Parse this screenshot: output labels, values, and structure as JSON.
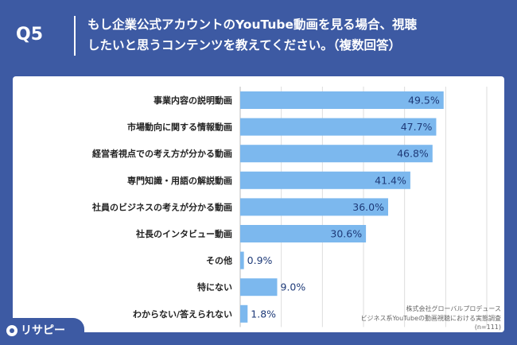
{
  "header": {
    "question_label": "Q5",
    "title": "もし企業公式アカウントのYouTube動画を見る場合、視聴\nしたいと思うコンテンツを教えてください。（複数回答）"
  },
  "chart_data": {
    "type": "bar",
    "orientation": "horizontal",
    "categories": [
      "事業内容の説明動画",
      "市場動向に関する情報動画",
      "経営者視点での考え方が分かる動画",
      "専門知識・用語の解説動画",
      "社員のビジネスの考えが分かる動画",
      "社長のインタビュー動画",
      "その他",
      "特にない",
      "わからない/答えられない"
    ],
    "values": [
      49.5,
      47.7,
      46.8,
      41.4,
      36.0,
      30.6,
      0.9,
      9.0,
      1.8
    ],
    "value_labels": [
      "49.5%",
      "47.7%",
      "46.8%",
      "41.4%",
      "36.0%",
      "30.6%",
      "0.9%",
      "9.0%",
      "1.8%"
    ],
    "xlim": [
      0,
      60
    ],
    "grid": true,
    "bar_color": "#7cb8ee"
  },
  "source": {
    "line1": "株式会社グローバルプロデュース",
    "line2": "ビジネス系YouTubeの動画視聴における実態調査",
    "line3": "(n=111)"
  },
  "brand": {
    "logo_text": "リサピー"
  }
}
